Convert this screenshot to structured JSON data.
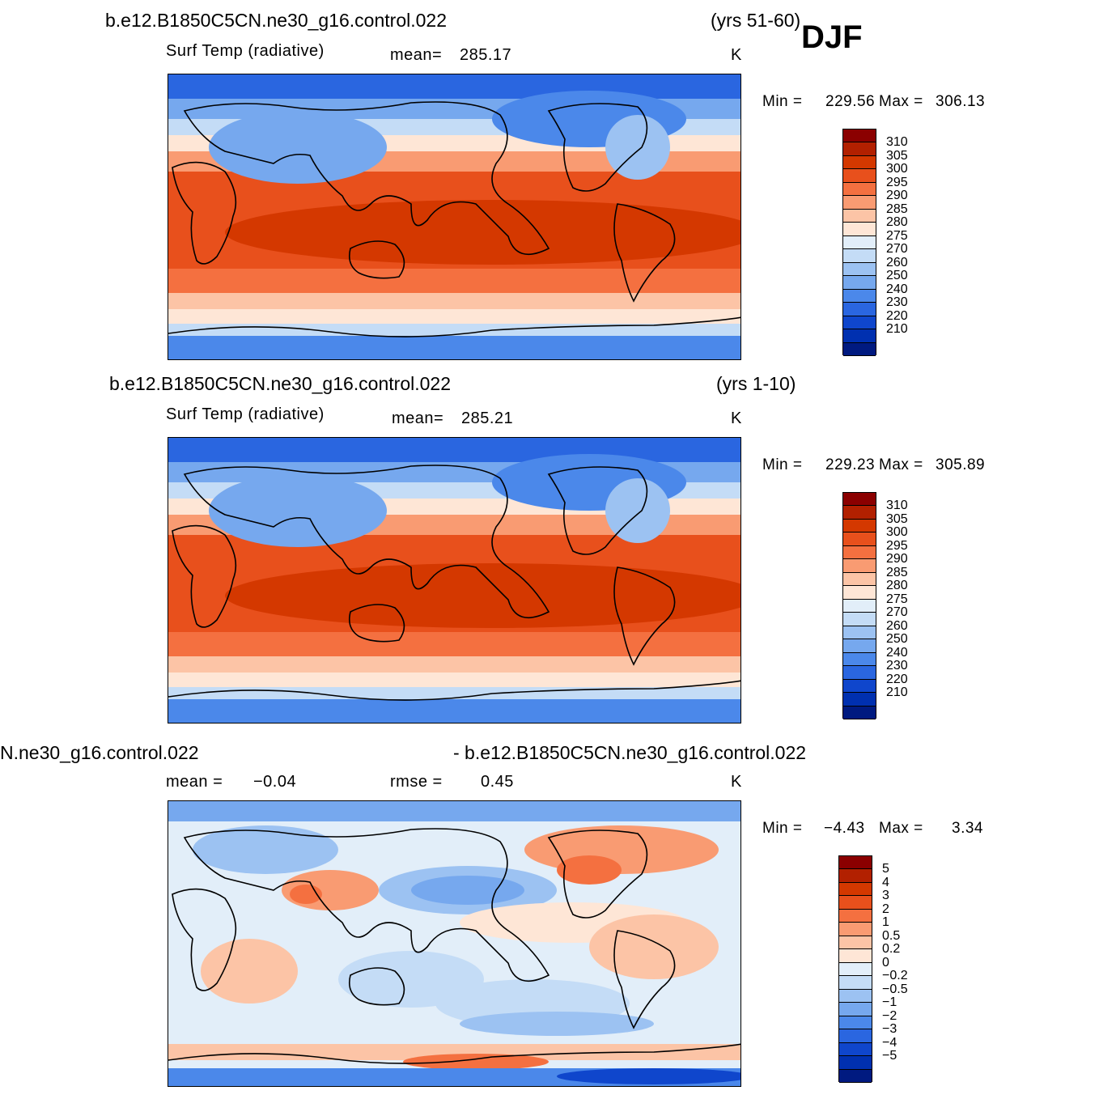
{
  "header": {
    "season": "DJF"
  },
  "panels": [
    {
      "case": "b.e12.B1850C5CN.ne30_g16.control.022",
      "years": "(yrs 51-60)",
      "variable": "Surf Temp (radiative)",
      "mean_label": "mean=",
      "mean_value": "285.17",
      "units": "K",
      "min_label": "Min  =",
      "min_value": "229.56",
      "max_label": "Max  =",
      "max_value": "306.13",
      "colorbar": {
        "labels": [
          "310",
          "305",
          "300",
          "295",
          "290",
          "285",
          "280",
          "275",
          "270",
          "260",
          "250",
          "240",
          "230",
          "220",
          "210"
        ],
        "colors": [
          "#8b0000",
          "#b22000",
          "#d43800",
          "#e8501c",
          "#f47040",
          "#f99b72",
          "#fcc4a6",
          "#fee6d6",
          "#e2eef9",
          "#c4dcf6",
          "#9cc2f2",
          "#76a8ee",
          "#4b88ea",
          "#2a66e0",
          "#0f46cc",
          "#0030b0",
          "#001a80"
        ]
      }
    },
    {
      "case": "b.e12.B1850C5CN.ne30_g16.control.022",
      "years": "(yrs 1-10)",
      "variable": "Surf Temp (radiative)",
      "mean_label": "mean=",
      "mean_value": "285.21",
      "units": "K",
      "min_label": "Min  =",
      "min_value": "229.23",
      "max_label": "Max  =",
      "max_value": "305.89",
      "colorbar": {
        "labels": [
          "310",
          "305",
          "300",
          "295",
          "290",
          "285",
          "280",
          "275",
          "270",
          "260",
          "250",
          "240",
          "230",
          "220",
          "210"
        ],
        "colors": [
          "#8b0000",
          "#b22000",
          "#d43800",
          "#e8501c",
          "#f47040",
          "#f99b72",
          "#fcc4a6",
          "#fee6d6",
          "#e2eef9",
          "#c4dcf6",
          "#9cc2f2",
          "#76a8ee",
          "#4b88ea",
          "#2a66e0",
          "#0f46cc",
          "#0030b0",
          "#001a80"
        ]
      }
    },
    {
      "case_left": "N.ne30_g16.control.022",
      "case_right": "- b.e12.B1850C5CN.ne30_g16.control.022",
      "mean_label": "mean =",
      "mean_value": "−0.04",
      "rmse_label": "rmse =",
      "rmse_value": "0.45",
      "units": "K",
      "min_label": "Min  =",
      "min_value": "−4.43",
      "max_label": "Max  =",
      "max_value": "3.34",
      "colorbar": {
        "labels": [
          "5",
          "4",
          "3",
          "2",
          "1",
          "0.5",
          "0.2",
          "0",
          "−0.2",
          "−0.5",
          "−1",
          "−2",
          "−3",
          "−4",
          "−5"
        ],
        "colors": [
          "#8b0000",
          "#b22000",
          "#d43800",
          "#e8501c",
          "#f47040",
          "#f99b72",
          "#fcc4a6",
          "#fee6d6",
          "#e2eef9",
          "#c4dcf6",
          "#9cc2f2",
          "#76a8ee",
          "#4b88ea",
          "#2a66e0",
          "#0f46cc",
          "#0030b0",
          "#001a80"
        ]
      }
    }
  ]
}
